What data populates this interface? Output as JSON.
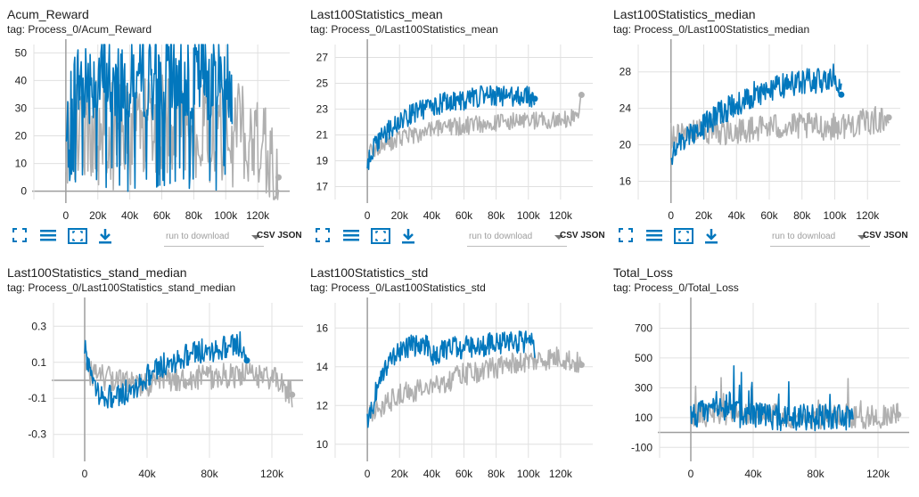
{
  "toolbar": {
    "download_placeholder": "run to download",
    "csv_json_label": "CSV JSON",
    "icons": [
      "fit-domain-icon",
      "toggle-log-scale-icon",
      "fullscreen-icon",
      "download-icon"
    ]
  },
  "colors": {
    "series_a": "#0277bd",
    "series_b": "#b0b0b0",
    "axis": "#9e9e9e",
    "grid": "#e0e0e0"
  },
  "chart_data": [
    {
      "title": "Acum_Reward",
      "tag": "tag: Process_0/Acum_Reward",
      "type": "line",
      "xlim": [
        -20000,
        140000
      ],
      "ylim": [
        -3,
        53
      ],
      "xticks": [
        0,
        20000,
        40000,
        60000,
        80000,
        100000,
        120000
      ],
      "xtick_labels": [
        "0",
        "20k",
        "40k",
        "60k",
        "80k",
        "100k",
        "120k"
      ],
      "yticks": [
        0,
        10,
        20,
        30,
        40,
        50
      ],
      "ytick_labels": [
        "0",
        "10",
        "20",
        "30",
        "40",
        "50"
      ],
      "series": [
        {
          "color": "#0277bd",
          "x": [
            0,
            5000,
            10000,
            20000,
            30000,
            40000,
            50000,
            60000,
            70000,
            80000,
            90000,
            100000,
            104000
          ],
          "y": [
            15,
            38,
            40,
            41,
            41,
            41,
            42,
            41,
            42,
            41,
            42,
            41,
            40
          ],
          "noise": 16,
          "end_marker": false
        },
        {
          "color": "#b0b0b0",
          "x": [
            0,
            10000,
            20000,
            40000,
            60000,
            80000,
            100000,
            120000,
            133000
          ],
          "y": [
            20,
            22,
            24,
            25,
            24,
            25,
            24,
            23,
            5
          ],
          "noise": 18,
          "end_marker": true
        }
      ]
    },
    {
      "title": "Last100Statistics_mean",
      "tag": "tag: Process_0/Last100Statistics_mean",
      "type": "line",
      "xlim": [
        -20000,
        140000
      ],
      "ylim": [
        16,
        28
      ],
      "xticks": [
        0,
        20000,
        40000,
        60000,
        80000,
        100000,
        120000
      ],
      "xtick_labels": [
        "0",
        "20k",
        "40k",
        "60k",
        "80k",
        "100k",
        "120k"
      ],
      "yticks": [
        17,
        19,
        21,
        23,
        25,
        27
      ],
      "ytick_labels": [
        "17",
        "19",
        "21",
        "23",
        "25",
        "27"
      ],
      "series": [
        {
          "color": "#0277bd",
          "x": [
            0,
            3000,
            10000,
            20000,
            30000,
            40000,
            50000,
            60000,
            70000,
            80000,
            90000,
            100000,
            104000
          ],
          "y": [
            18.5,
            19.8,
            21,
            22,
            22.8,
            23.2,
            23.6,
            23.7,
            24,
            24,
            24,
            24,
            23.8
          ],
          "noise": 0.8,
          "end_marker": true
        },
        {
          "color": "#b0b0b0",
          "x": [
            0,
            5000,
            10000,
            20000,
            40000,
            60000,
            80000,
            100000,
            120000,
            130000,
            133000
          ],
          "y": [
            19.5,
            20,
            20.3,
            20.7,
            21.4,
            21.7,
            22,
            22.1,
            22.2,
            22.3,
            24.1
          ],
          "noise": 0.7,
          "end_marker": true
        }
      ]
    },
    {
      "title": "Last100Statistics_median",
      "tag": "tag: Process_0/Last100Statistics_median",
      "type": "line",
      "xlim": [
        -20000,
        140000
      ],
      "ylim": [
        14,
        31
      ],
      "xticks": [
        0,
        20000,
        40000,
        60000,
        80000,
        100000,
        120000
      ],
      "xtick_labels": [
        "0",
        "20k",
        "40k",
        "60k",
        "80k",
        "100k",
        "120k"
      ],
      "yticks": [
        16,
        20,
        24,
        28
      ],
      "ytick_labels": [
        "16",
        "20",
        "24",
        "28"
      ],
      "series": [
        {
          "color": "#0277bd",
          "x": [
            0,
            5000,
            10000,
            20000,
            30000,
            40000,
            50000,
            60000,
            70000,
            80000,
            90000,
            100000,
            104000
          ],
          "y": [
            19,
            20,
            21,
            22,
            23.5,
            24.5,
            25.5,
            26,
            26.5,
            27,
            27,
            27.5,
            25.5
          ],
          "noise": 1.4,
          "end_marker": true
        },
        {
          "color": "#b0b0b0",
          "x": [
            0,
            20000,
            40000,
            60000,
            80000,
            100000,
            120000,
            133000
          ],
          "y": [
            21,
            21.5,
            21.5,
            22,
            22,
            22,
            22.5,
            23
          ],
          "noise": 1.5,
          "end_marker": true
        }
      ]
    },
    {
      "title": "Last100Statistics_stand_median",
      "tag": "tag: Process_0/Last100Statistics_stand_median",
      "type": "line",
      "xlim": [
        -20000,
        140000
      ],
      "ylim": [
        -0.43,
        0.43
      ],
      "xticks": [
        0,
        40000,
        80000,
        120000
      ],
      "xtick_labels": [
        "0",
        "40k",
        "80k",
        "120k"
      ],
      "yticks": [
        0.3,
        0.1,
        -0.1,
        -0.3
      ],
      "ytick_labels": [
        "0.3",
        "0.1",
        "-0.1",
        "-0.3"
      ],
      "series": [
        {
          "color": "#0277bd",
          "x": [
            0,
            3000,
            10000,
            20000,
            30000,
            40000,
            50000,
            60000,
            70000,
            80000,
            90000,
            100000,
            104000
          ],
          "y": [
            0.2,
            0.05,
            -0.08,
            -0.1,
            -0.05,
            0.02,
            0.08,
            0.12,
            0.15,
            0.17,
            0.18,
            0.2,
            0.11
          ],
          "noise": 0.07,
          "end_marker": true
        },
        {
          "color": "#b0b0b0",
          "x": [
            0,
            10000,
            20000,
            40000,
            60000,
            80000,
            100000,
            120000,
            133000
          ],
          "y": [
            0.05,
            0.02,
            0,
            -0.02,
            0.01,
            0.02,
            0.03,
            0.02,
            -0.08
          ],
          "noise": 0.07,
          "end_marker": true
        }
      ]
    },
    {
      "title": "Last100Statistics_std",
      "tag": "tag: Process_0/Last100Statistics_std",
      "type": "line",
      "xlim": [
        -20000,
        140000
      ],
      "ylim": [
        9.3,
        17.3
      ],
      "xticks": [
        0,
        20000,
        40000,
        60000,
        80000,
        100000,
        120000
      ],
      "xtick_labels": [
        "0",
        "20k",
        "40k",
        "60k",
        "80k",
        "100k",
        "120k"
      ],
      "yticks": [
        10,
        12,
        14,
        16
      ],
      "ytick_labels": [
        "10",
        "12",
        "14",
        "16"
      ],
      "series": [
        {
          "color": "#0277bd",
          "x": [
            0,
            3000,
            8000,
            15000,
            25000,
            35000,
            42000,
            50000,
            60000,
            70000,
            80000,
            90000,
            100000,
            104000
          ],
          "y": [
            11,
            12,
            13.5,
            14.5,
            15,
            15.2,
            14.5,
            15,
            15,
            15.1,
            15.2,
            15.3,
            15.3,
            15
          ],
          "noise": 0.6,
          "end_marker": false
        },
        {
          "color": "#b0b0b0",
          "x": [
            0,
            10000,
            20000,
            40000,
            60000,
            80000,
            100000,
            120000,
            133000
          ],
          "y": [
            11.5,
            12,
            12.5,
            13,
            13.6,
            14,
            14.3,
            14.5,
            14.1
          ],
          "noise": 0.6,
          "end_marker": true
        }
      ]
    },
    {
      "title": "Total_Loss",
      "tag": "tag: Process_0/Total_Loss",
      "type": "line",
      "xlim": [
        -20000,
        140000
      ],
      "ylim": [
        -170,
        870
      ],
      "xticks": [
        0,
        40000,
        80000,
        120000
      ],
      "xtick_labels": [
        "0",
        "40k",
        "80k",
        "120k"
      ],
      "yticks": [
        700,
        500,
        300,
        100,
        -100
      ],
      "ytick_labels": [
        "700",
        "500",
        "300",
        "100",
        "-100"
      ],
      "series": [
        {
          "color": "#0277bd",
          "x": [
            0,
            10000,
            20000,
            26000,
            30000,
            40000,
            60000,
            80000,
            100000,
            104000
          ],
          "y": [
            120,
            130,
            150,
            200,
            120,
            110,
            100,
            100,
            100,
            90
          ],
          "noise": 90,
          "end_marker": false
        },
        {
          "color": "#b0b0b0",
          "x": [
            0,
            10000,
            20000,
            40000,
            60000,
            80000,
            100000,
            120000,
            133000
          ],
          "y": [
            110,
            120,
            130,
            120,
            110,
            100,
            110,
            100,
            120
          ],
          "noise": 80,
          "end_marker": true
        }
      ]
    }
  ]
}
